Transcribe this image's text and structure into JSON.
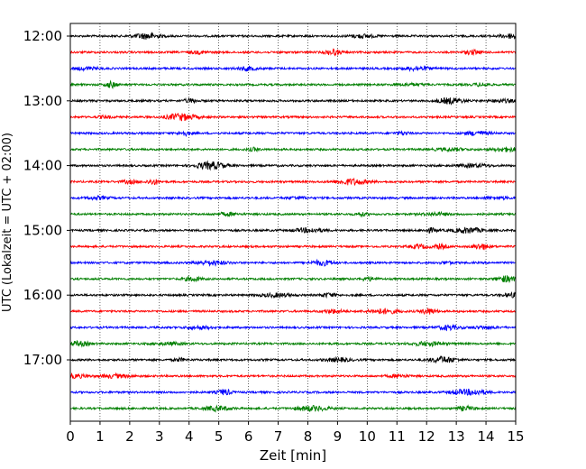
{
  "chart_data": {
    "type": "line",
    "title": "",
    "xlabel": "Zeit  [min]",
    "ylabel": "UTC (Lokalzeit = UTC + 02:00)",
    "xlim": [
      0,
      15
    ],
    "x_ticks": [
      "0",
      "1",
      "2",
      "3",
      "4",
      "5",
      "6",
      "7",
      "8",
      "9",
      "10",
      "11",
      "12",
      "13",
      "14",
      "15"
    ],
    "y_tick_labels": [
      "12:00",
      "13:00",
      "14:00",
      "15:00",
      "16:00",
      "17:00"
    ],
    "trace_interval_minutes": 15,
    "first_trace": "12:00",
    "trace_count": 24,
    "trace_colors": [
      "#000000",
      "#ff0000",
      "#0000ff",
      "#007f00"
    ],
    "vertical_grid": "dotted",
    "legend": "none"
  }
}
